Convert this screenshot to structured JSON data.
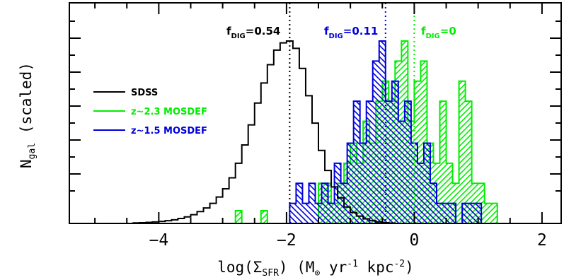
{
  "chart_data": {
    "type": "histogram",
    "xlabel": "log(Σ_SFR) (M_⊙ yr⁻¹ kpc⁻²)",
    "xlabel_parts": {
      "pre": "log(Σ",
      "sub": "SFR",
      "mid": ") (M",
      "sym": "⊙",
      "post": " yr",
      "sup1": "-1",
      "post2": " kpc",
      "sup2": "-2",
      "close": ")"
    },
    "ylabel": "N_gal (scaled)",
    "ylabel_parts": {
      "main": "N",
      "sub": "gal",
      "rest": " (scaled)"
    },
    "xlim": [
      -5.4,
      2.3
    ],
    "ylim": [
      0,
      1.0
    ],
    "xticks": [
      -4,
      -2,
      0,
      2
    ],
    "xtick_labels": [
      "−4",
      "−2",
      "0",
      "2"
    ],
    "grid": false,
    "legend_position": "left",
    "colors": {
      "sdss": "#000000",
      "z23": "#00ee00",
      "z15": "#0000dd"
    },
    "series": [
      {
        "name": "SDSS",
        "style": "step-outline",
        "color": "#000000",
        "bin_edges": [
          -4.4,
          -4.3,
          -4.2,
          -4.1,
          -4.0,
          -3.9,
          -3.8,
          -3.7,
          -3.6,
          -3.5,
          -3.4,
          -3.3,
          -3.2,
          -3.1,
          -3.0,
          -2.9,
          -2.8,
          -2.7,
          -2.6,
          -2.5,
          -2.4,
          -2.3,
          -2.2,
          -2.1,
          -2.0,
          -1.9,
          -1.8,
          -1.7,
          -1.6,
          -1.5,
          -1.4,
          -1.3,
          -1.2,
          -1.1,
          -1.0,
          -0.9,
          -0.8,
          -0.7,
          -0.6,
          -0.5,
          -0.4,
          -0.3
        ],
        "counts": [
          0.003,
          0.004,
          0.006,
          0.008,
          0.011,
          0.015,
          0.02,
          0.027,
          0.036,
          0.048,
          0.065,
          0.085,
          0.11,
          0.145,
          0.19,
          0.25,
          0.33,
          0.43,
          0.54,
          0.66,
          0.77,
          0.87,
          0.95,
          0.99,
          1.0,
          0.96,
          0.85,
          0.7,
          0.55,
          0.4,
          0.29,
          0.2,
          0.14,
          0.09,
          0.06,
          0.04,
          0.025,
          0.015,
          0.008,
          0.004,
          0.002
        ]
      },
      {
        "name": "z~2.3 MOSDEF",
        "style": "hatch-forward",
        "color": "#00ee00",
        "bin_edges": [
          -2.8,
          -2.7,
          -2.6,
          -2.5,
          -2.4,
          -2.3,
          -2.2,
          -2.1,
          -2.0,
          -1.9,
          -1.8,
          -1.7,
          -1.6,
          -1.5,
          -1.4,
          -1.3,
          -1.2,
          -1.1,
          -1.0,
          -0.9,
          -0.8,
          -0.7,
          -0.6,
          -0.5,
          -0.4,
          -0.3,
          -0.2,
          -0.1,
          0.0,
          0.1,
          0.2,
          0.3,
          0.4,
          0.5,
          0.6,
          0.7,
          0.8,
          0.9,
          1.0,
          1.1,
          1.2,
          1.3
        ],
        "counts": [
          0.07,
          0,
          0,
          0,
          0.07,
          0,
          0,
          0,
          0,
          0,
          0,
          0,
          0,
          0.22,
          0.22,
          0.11,
          0.22,
          0.33,
          0.44,
          0.33,
          0.56,
          0.44,
          0.67,
          0.78,
          0.67,
          0.89,
          1.0,
          0.56,
          0.78,
          0.89,
          0.44,
          0.33,
          0.67,
          0.33,
          0.22,
          0.78,
          0.67,
          0.22,
          0.22,
          0.11,
          0.11
        ]
      },
      {
        "name": "z~1.5 MOSDEF",
        "style": "hatch-back",
        "color": "#0000dd",
        "bin_edges": [
          -2.05,
          -1.95,
          -1.85,
          -1.75,
          -1.65,
          -1.55,
          -1.45,
          -1.35,
          -1.25,
          -1.15,
          -1.05,
          -0.95,
          -0.85,
          -0.75,
          -0.65,
          -0.55,
          -0.45,
          -0.35,
          -0.25,
          -0.15,
          -0.05,
          0.05,
          0.15,
          0.25,
          0.35,
          0.45,
          0.55,
          0.65,
          0.75,
          0.85,
          0.95,
          1.05,
          1.15
        ],
        "counts": [
          0,
          0.11,
          0.22,
          0.11,
          0.22,
          0.11,
          0.22,
          0.11,
          0.33,
          0.22,
          0.44,
          0.67,
          0.44,
          0.67,
          0.89,
          1.0,
          0.67,
          0.78,
          0.56,
          0.67,
          0.44,
          0.33,
          0.44,
          0.22,
          0.11,
          0.11,
          0.11,
          0,
          0.11,
          0.11,
          0.11,
          0
        ]
      }
    ],
    "vlines": [
      {
        "x": -1.95,
        "color": "#000000",
        "label_main": "f",
        "label_sub": "DIG",
        "label_rest": "=0.54"
      },
      {
        "x": -0.45,
        "color": "#0000dd",
        "label_main": "f",
        "label_sub": "DIG",
        "label_rest": "=0.11"
      },
      {
        "x": 0.0,
        "color": "#00ee00",
        "label_main": "f",
        "label_sub": "DIG",
        "label_rest": "=0"
      }
    ]
  }
}
